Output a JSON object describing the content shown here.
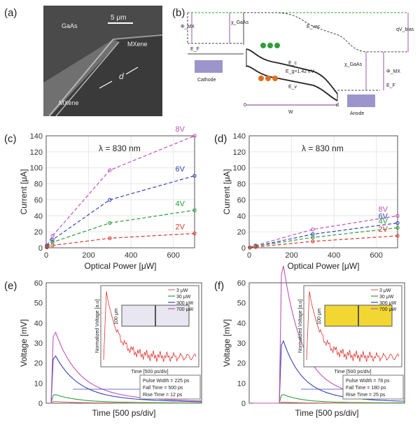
{
  "panel_labels": {
    "a": "(a)",
    "b": "(b)",
    "c": "(c)",
    "d": "(d)",
    "e": "(e)",
    "f": "(f)"
  },
  "sem": {
    "scale_label": "5 μm",
    "label_gaas": "GaAs",
    "label_mxene_right": "MXene",
    "label_mxene_left": "MXene",
    "label_d": "d"
  },
  "band": {
    "phi_mx_left": "Φ_MX",
    "chi_gaas_left": "χ_GaAs",
    "e_vac": "E_vac",
    "qv_bias": "qV_bias",
    "ef_left": "E_F",
    "cathode": "Cathode",
    "anode": "Anode",
    "ec": "E_c",
    "eg": "E_g=1.42 eV",
    "ev": "E_v",
    "chi_gaas_right": "χ_GaAs",
    "phi_mx_right": "Φ_MX",
    "ef_right": "E_F",
    "w": "W",
    "zero": "0",
    "d": "d"
  },
  "chart_data": [
    {
      "type": "line",
      "panel": "c",
      "annotation": "λ = 830 nm",
      "xlabel": "Optical Power [μW]",
      "ylabel": "Current [μA]",
      "xlim": [
        0,
        700
      ],
      "ylim": [
        0,
        140
      ],
      "xticks": [
        0,
        200,
        400,
        600
      ],
      "yticks": [
        0,
        20,
        40,
        60,
        80,
        100,
        120,
        140
      ],
      "series": [
        {
          "name": "8V",
          "color": "#c054b8",
          "x": [
            3,
            30,
            300,
            700
          ],
          "y": [
            3,
            15,
            97,
            140
          ]
        },
        {
          "name": "6V",
          "color": "#3545b8",
          "x": [
            3,
            30,
            300,
            700
          ],
          "y": [
            2,
            10,
            60,
            90
          ]
        },
        {
          "name": "4V",
          "color": "#2e9e3a",
          "x": [
            3,
            30,
            300,
            700
          ],
          "y": [
            1,
            7,
            31,
            47
          ]
        },
        {
          "name": "2V",
          "color": "#d83a30",
          "x": [
            3,
            30,
            300,
            700
          ],
          "y": [
            0.5,
            3,
            12,
            18
          ]
        }
      ]
    },
    {
      "type": "line",
      "panel": "d",
      "annotation": "λ = 830 nm",
      "xlabel": "Optical Power [μW]",
      "ylabel": "Current [μA]",
      "xlim": [
        0,
        700
      ],
      "ylim": [
        0,
        140
      ],
      "xticks": [
        0,
        200,
        400,
        600
      ],
      "yticks": [
        0,
        20,
        40,
        60,
        80,
        100,
        120,
        140
      ],
      "series": [
        {
          "name": "8V",
          "color": "#c054b8",
          "x": [
            3,
            30,
            300,
            700
          ],
          "y": [
            0.5,
            3,
            23,
            40
          ]
        },
        {
          "name": "6V",
          "color": "#3545b8",
          "x": [
            3,
            30,
            300,
            700
          ],
          "y": [
            0.4,
            2,
            17,
            31
          ]
        },
        {
          "name": "4V",
          "color": "#2e9e3a",
          "x": [
            3,
            30,
            300,
            700
          ],
          "y": [
            0.3,
            2,
            13,
            25
          ]
        },
        {
          "name": "2V",
          "color": "#d83a30",
          "x": [
            3,
            30,
            300,
            700
          ],
          "y": [
            0.2,
            1,
            8,
            15
          ]
        }
      ]
    },
    {
      "type": "line",
      "panel": "e",
      "xlabel": "Time [500 ps/div]",
      "ylabel": "Voltage [mV]",
      "ylim": [
        0,
        60
      ],
      "yticks": [
        0,
        10,
        20,
        30,
        40,
        50,
        60
      ],
      "series": [
        {
          "name": "3 μW",
          "color": "#e07070",
          "peak": 0.8
        },
        {
          "name": "30 μW",
          "color": "#2e9e3a",
          "peak": 4
        },
        {
          "name": "300 μW",
          "color": "#3545b8",
          "peak": 22
        },
        {
          "name": "700 μW",
          "color": "#c054b8",
          "peak": 33
        }
      ],
      "legend": [
        "3 μW",
        "30 μW",
        "300 μW",
        "700 μW"
      ],
      "inset_xlabel": "Time [500 ps/div]",
      "inset_ylabel": "Normalized Voltage [a.u]",
      "scale_label": "100 μm",
      "metrics": [
        "Pulse Width = 225 ps",
        "Fall Time = 500 ps",
        "Rise Time = 12 ps"
      ]
    },
    {
      "type": "line",
      "panel": "f",
      "xlabel": "Time [500 ps/div]",
      "ylabel": "Voltage [mV]",
      "ylim": [
        0,
        60
      ],
      "yticks": [
        0,
        10,
        20,
        30,
        40,
        50,
        60
      ],
      "series": [
        {
          "name": "3 μW",
          "color": "#e07070",
          "peak": 0.5
        },
        {
          "name": "30 μW",
          "color": "#2e9e3a",
          "peak": 4
        },
        {
          "name": "300 μW",
          "color": "#3545b8",
          "peak": 29
        },
        {
          "name": "700 μW",
          "color": "#c054b8",
          "peak": 64
        }
      ],
      "legend": [
        "3 μW",
        "30 μW",
        "300 μW",
        "700 μW"
      ],
      "inset_xlabel": "Time [500 ps/div]",
      "inset_ylabel": "Normalized Voltage [a.u]",
      "scale_label": "100 μm",
      "metrics": [
        "Pulse Width = 78 ps",
        "Fall Time = 180 ps",
        "Rise Time = 25 ps"
      ]
    }
  ]
}
